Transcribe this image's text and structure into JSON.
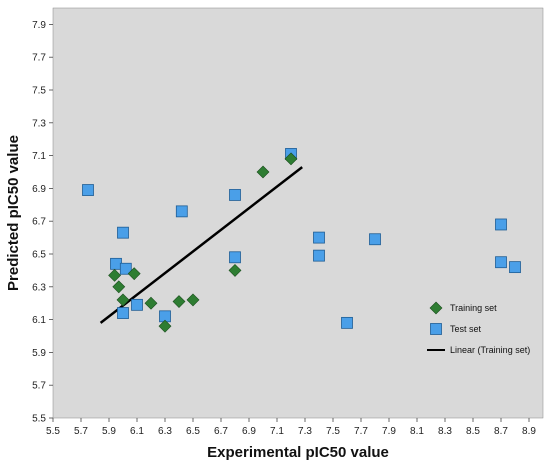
{
  "chart_data": {
    "type": "scatter",
    "xlabel": "Experimental pIC50 value",
    "ylabel": "Predicted pIC50 value",
    "xlim": [
      5.5,
      9.0
    ],
    "ylim": [
      5.5,
      8.0
    ],
    "x_ticks": [
      "5.5",
      "5.7",
      "5.9",
      "6.1",
      "6.3",
      "6.5",
      "6.7",
      "6.9",
      "7.1",
      "7.3",
      "7.5",
      "7.7",
      "7.9",
      "8.1",
      "8.3",
      "8.5",
      "8.7",
      "8.9"
    ],
    "y_ticks": [
      "5.5",
      "5.7",
      "5.9",
      "6.1",
      "6.3",
      "6.5",
      "6.7",
      "6.9",
      "7.1",
      "7.3",
      "7.5",
      "7.7",
      "7.9"
    ],
    "grid": false,
    "plot_background": "#d9d9d9",
    "legend_position": "bottom-right",
    "series": [
      {
        "name": "Training set",
        "marker": "diamond",
        "color": "#2e7d32",
        "points": [
          [
            5.94,
            6.37
          ],
          [
            5.97,
            6.3
          ],
          [
            6.0,
            6.22
          ],
          [
            6.08,
            6.38
          ],
          [
            6.2,
            6.2
          ],
          [
            6.3,
            6.06
          ],
          [
            6.4,
            6.21
          ],
          [
            6.5,
            6.22
          ],
          [
            6.8,
            6.4
          ],
          [
            7.0,
            7.0
          ],
          [
            7.2,
            7.08
          ]
        ]
      },
      {
        "name": "Test set",
        "marker": "square",
        "color": "#4a9fe8",
        "points": [
          [
            5.75,
            6.89
          ],
          [
            5.95,
            6.44
          ],
          [
            6.0,
            6.63
          ],
          [
            6.02,
            6.41
          ],
          [
            6.0,
            6.14
          ],
          [
            6.1,
            6.19
          ],
          [
            6.3,
            6.12
          ],
          [
            6.42,
            6.76
          ],
          [
            6.8,
            6.86
          ],
          [
            6.8,
            6.48
          ],
          [
            7.2,
            7.11
          ],
          [
            7.4,
            6.6
          ],
          [
            7.4,
            6.49
          ],
          [
            7.6,
            6.08
          ],
          [
            7.8,
            6.59
          ],
          [
            8.7,
            6.68
          ],
          [
            8.7,
            6.45
          ],
          [
            8.8,
            6.42
          ]
        ]
      },
      {
        "name": "Linear (Training set)",
        "marker": "line",
        "color": "#000000",
        "points": [
          [
            5.84,
            6.08
          ],
          [
            7.28,
            7.03
          ]
        ]
      }
    ]
  }
}
